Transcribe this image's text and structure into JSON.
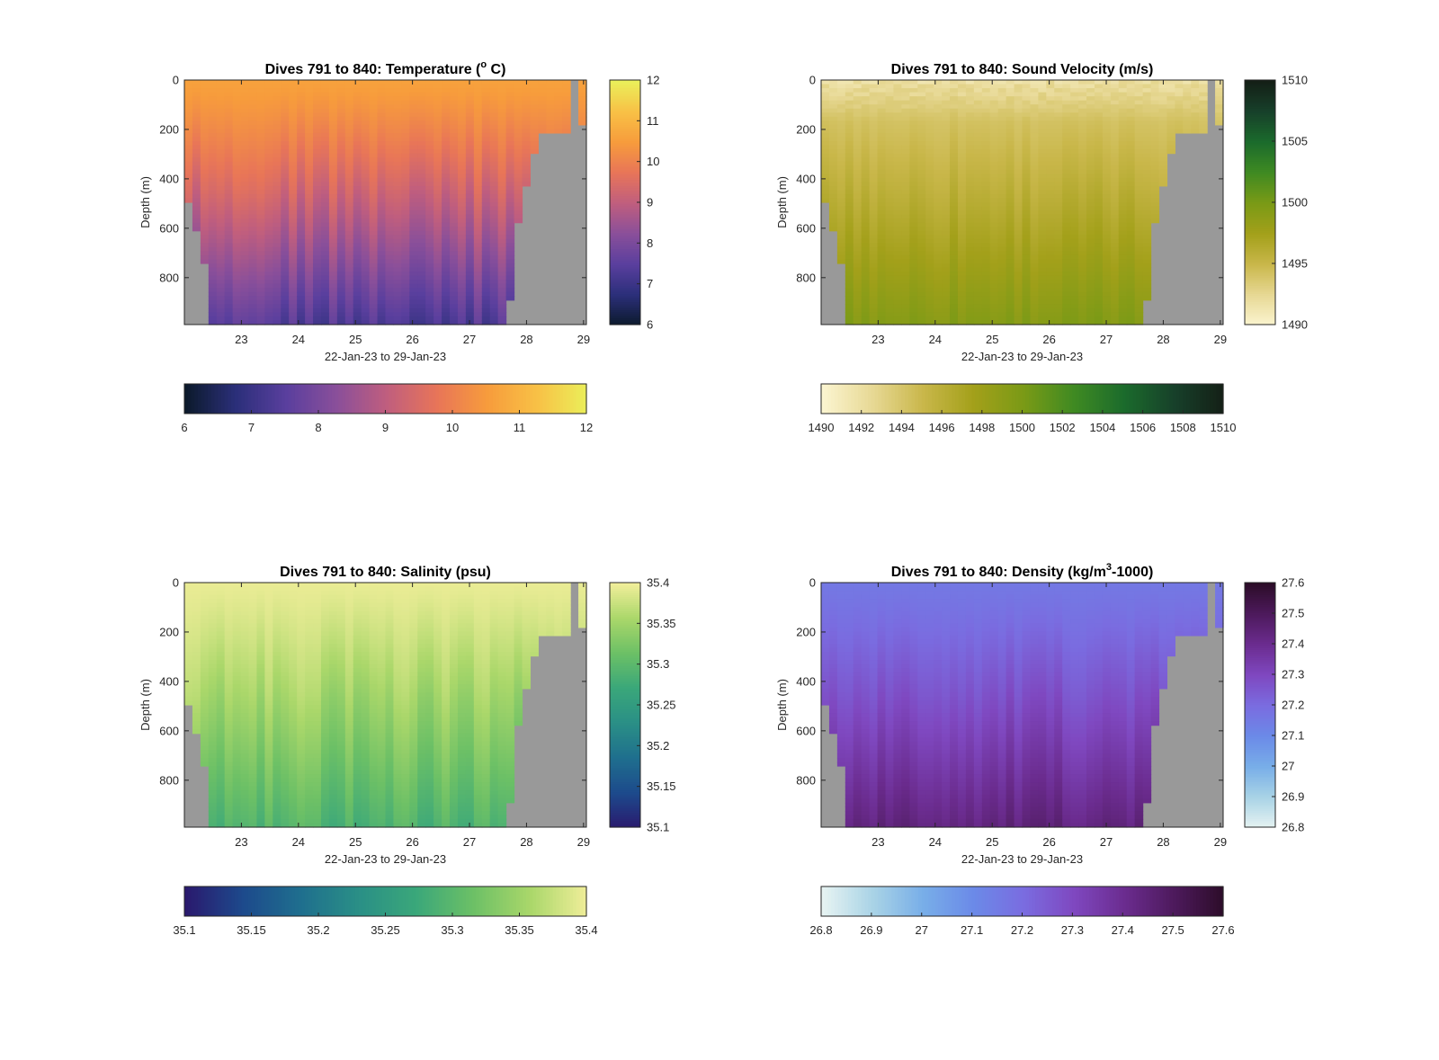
{
  "figure": {
    "depth_label": "Depth (m)",
    "date_label": "22-Jan-23 to 29-Jan-23",
    "colors": {
      "no_data": "#999999",
      "axes": "#262626"
    }
  },
  "chart_data": [
    {
      "type": "heatmap",
      "title": "Dives 791 to 840: Temperature (",
      "title_sup": "o",
      "title_end": " C)",
      "xlabel": "22-Jan-23 to 29-Jan-23",
      "ylabel": "Depth (m)",
      "x_ticks": [
        "23",
        "24",
        "25",
        "26",
        "27",
        "28",
        "29"
      ],
      "y_ticks": [
        "0",
        "200",
        "400",
        "600",
        "800"
      ],
      "xlim": [
        22.0,
        29.05
      ],
      "ylim": [
        0,
        990
      ],
      "colorbar_right_ticks": [
        "6",
        "7",
        "8",
        "9",
        "10",
        "11",
        "12"
      ],
      "colorbar_bottom_ticks": [
        "6",
        "7",
        "8",
        "9",
        "10",
        "11",
        "12"
      ],
      "clim": [
        6,
        12
      ],
      "colormap": [
        "#0c1a2c",
        "#2b2f7a",
        "#5a3f9e",
        "#8a4f9a",
        "#c05e7e",
        "#e87558",
        "#f79c3c",
        "#f8c146",
        "#eaf05a"
      ],
      "surface_value": 10.6,
      "bottom_value": 7.3,
      "shallow_extra": 0.0,
      "stripe_amp": 0.35
    },
    {
      "type": "heatmap",
      "title": "Dives 791 to 840: Sound Velocity (m/s)",
      "title_sup": "",
      "title_end": "",
      "xlabel": "22-Jan-23 to 29-Jan-23",
      "ylabel": "Depth (m)",
      "x_ticks": [
        "23",
        "24",
        "25",
        "26",
        "27",
        "28",
        "29"
      ],
      "y_ticks": [
        "0",
        "200",
        "400",
        "600",
        "800"
      ],
      "xlim": [
        22.0,
        29.05
      ],
      "ylim": [
        0,
        990
      ],
      "colorbar_right_ticks": [
        "1490",
        "1495",
        "1500",
        "1505",
        "1510"
      ],
      "colorbar_bottom_ticks": [
        "1490",
        "1492",
        "1494",
        "1496",
        "1498",
        "1500",
        "1502",
        "1504",
        "1506",
        "1508",
        "1510"
      ],
      "clim": [
        1490,
        1510
      ],
      "colormap": [
        "#fbf5d0",
        "#e7d894",
        "#c9b74a",
        "#a3a01a",
        "#7a9a16",
        "#3f8a22",
        "#1b6b2c",
        "#17402a",
        "#141f16"
      ],
      "surface_value": 1493.5,
      "bottom_value": 1499.5,
      "shallow_extra": 1.5,
      "stripe_amp": 0.6
    },
    {
      "type": "heatmap",
      "title": "Dives 791 to 840: Salinity (psu)",
      "title_sup": "",
      "title_end": "",
      "xlabel": "22-Jan-23 to 29-Jan-23",
      "ylabel": "Depth (m)",
      "x_ticks": [
        "23",
        "24",
        "25",
        "26",
        "27",
        "28",
        "29"
      ],
      "y_ticks": [
        "0",
        "200",
        "400",
        "600",
        "800"
      ],
      "xlim": [
        22.0,
        29.05
      ],
      "ylim": [
        0,
        990
      ],
      "colorbar_right_ticks": [
        "35.1",
        "35.15",
        "35.2",
        "35.25",
        "35.3",
        "35.35",
        "35.4"
      ],
      "colorbar_bottom_ticks": [
        "35.1",
        "35.15",
        "35.2",
        "35.25",
        "35.3",
        "35.35",
        "35.4"
      ],
      "clim": [
        35.1,
        35.4
      ],
      "colormap": [
        "#2a1a6e",
        "#1d4a8c",
        "#1f6f8e",
        "#2a8f86",
        "#3aa77a",
        "#6cc066",
        "#aad76a",
        "#f1ee9a"
      ],
      "surface_value": 35.395,
      "bottom_value": 35.29,
      "shallow_extra": 0.0,
      "stripe_amp": 0.018
    },
    {
      "type": "heatmap",
      "title": "Dives 791 to 840: Density (kg/m",
      "title_sup": "3",
      "title_end": "-1000)",
      "xlabel": "22-Jan-23 to 29-Jan-23",
      "ylabel": "Depth (m)",
      "x_ticks": [
        "23",
        "24",
        "25",
        "26",
        "27",
        "28",
        "29"
      ],
      "y_ticks": [
        "0",
        "200",
        "400",
        "600",
        "800"
      ],
      "xlim": [
        22.0,
        29.05
      ],
      "ylim": [
        0,
        990
      ],
      "colorbar_right_ticks": [
        "26.8",
        "26.9",
        "27",
        "27.1",
        "27.2",
        "27.3",
        "27.4",
        "27.5",
        "27.6"
      ],
      "colorbar_bottom_ticks": [
        "26.8",
        "26.9",
        "27",
        "27.1",
        "27.2",
        "27.3",
        "27.4",
        "27.5",
        "27.6"
      ],
      "clim": [
        26.8,
        27.6
      ],
      "colormap": [
        "#e6f3f2",
        "#a9d3e6",
        "#78aee8",
        "#6b8ae8",
        "#7a6ce0",
        "#7f48c0",
        "#6b2c8f",
        "#4d1a5c",
        "#2c0c28"
      ],
      "surface_value": 27.16,
      "bottom_value": 27.44,
      "shallow_extra": 0.0,
      "stripe_amp": 0.03
    }
  ]
}
